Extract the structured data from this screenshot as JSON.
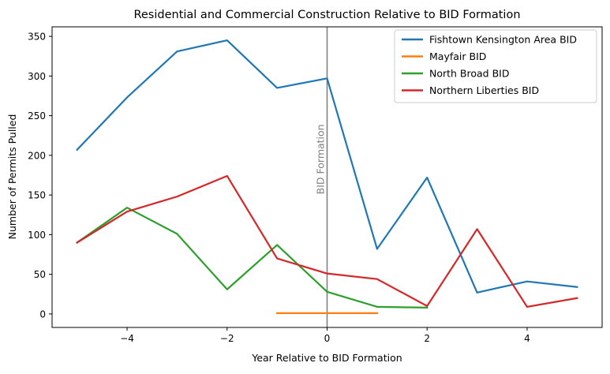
{
  "chart_data": {
    "type": "line",
    "title": "Residential and Commercial Construction Relative to BID Formation",
    "xlabel": "Year Relative to BID Formation",
    "ylabel": "Number of Permits Pulled",
    "xlim": [
      -5.5,
      5.5
    ],
    "ylim": [
      -17,
      362
    ],
    "xticks": [
      -4,
      -2,
      0,
      2,
      4
    ],
    "xtick_labels": [
      "−4",
      "−2",
      "0",
      "2",
      "4"
    ],
    "yticks": [
      0,
      50,
      100,
      150,
      200,
      250,
      300,
      350
    ],
    "ytick_labels": [
      "0",
      "50",
      "100",
      "150",
      "200",
      "250",
      "300",
      "350"
    ],
    "grid": false,
    "legend_position": "top-right",
    "vline": {
      "x": 0,
      "label": "BID Formation",
      "color": "#808080"
    },
    "series": [
      {
        "name": "Fishtown Kensington Area BID",
        "color": "#1f77b4",
        "x": [
          -5,
          -4,
          -3,
          -2,
          -1,
          0,
          1,
          2,
          3,
          4,
          5
        ],
        "y": [
          207,
          273,
          331,
          345,
          285,
          297,
          82,
          172,
          27,
          41,
          34
        ]
      },
      {
        "name": "Mayfair BID",
        "color": "#ff7f0e",
        "x": [
          -1,
          0,
          1
        ],
        "y": [
          1,
          1,
          1
        ]
      },
      {
        "name": "North Broad BID",
        "color": "#2ca02c",
        "x": [
          -5,
          -4,
          -3,
          -2,
          -1,
          0,
          1,
          2
        ],
        "y": [
          90,
          134,
          101,
          31,
          87,
          28,
          9,
          8
        ]
      },
      {
        "name": "Northern Liberties BID",
        "color": "#d62728",
        "x": [
          -5,
          -4,
          -3,
          -2,
          -1,
          0,
          1,
          2,
          3,
          4,
          5
        ],
        "y": [
          90,
          129,
          148,
          174,
          70,
          51,
          44,
          10,
          107,
          9,
          20
        ]
      }
    ]
  }
}
